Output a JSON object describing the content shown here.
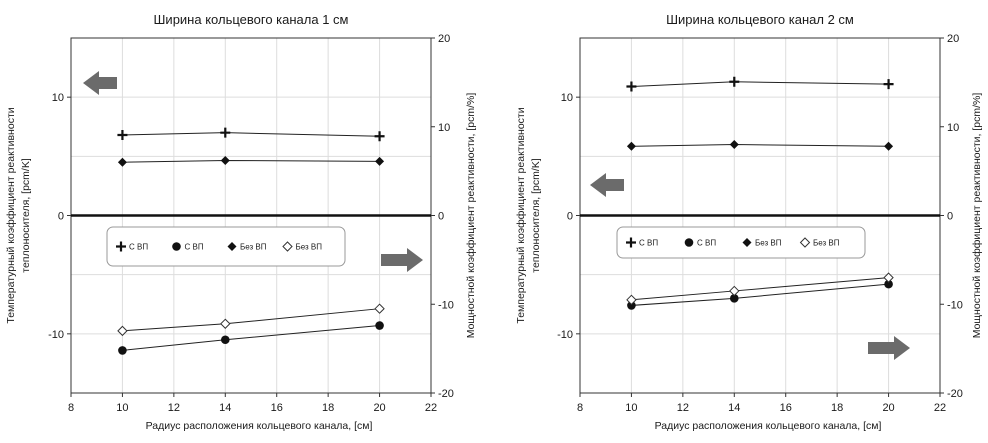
{
  "chart_data": [
    {
      "type": "line",
      "title": "Ширина кольцевого канала 1 см",
      "xlabel": "Радиус расположения кольцевого канала, [см]",
      "ylabel_lines": [
        "Температурный коэффициент реактивности",
        "теплоносителя, [pcm/K]"
      ],
      "y2label": "Мощностной коэффициент реактивности, [pcm/%]",
      "xlim": [
        8,
        22
      ],
      "ylim": [
        -15,
        15
      ],
      "y2lim": [
        -20,
        20
      ],
      "xticks": [
        "8",
        "10",
        "12",
        "14",
        "16",
        "18",
        "20",
        "22"
      ],
      "yticks": [
        "-10",
        "0",
        "10"
      ],
      "y2ticks": [
        "-20",
        "-10",
        "0",
        "10",
        "20"
      ],
      "grid": true,
      "legend_position": "center-left",
      "series": [
        {
          "name": "С ВП",
          "marker": "plus",
          "axis": "left",
          "x": [
            10,
            14,
            20
          ],
          "y": [
            6.8,
            7.0,
            6.7
          ]
        },
        {
          "name": "С ВП",
          "marker": "circle",
          "axis": "left",
          "x": [
            10,
            14,
            20
          ],
          "y": [
            -11.4,
            -10.5,
            -9.3
          ]
        },
        {
          "name": "Без ВП",
          "marker": "diamond-filled",
          "axis": "right",
          "x": [
            10,
            14,
            20
          ],
          "y": [
            6.0,
            6.2,
            6.1
          ]
        },
        {
          "name": "Без ВП",
          "marker": "diamond-open",
          "axis": "right",
          "x": [
            10,
            14,
            20
          ],
          "y": [
            -13.0,
            -12.2,
            -10.5
          ]
        }
      ],
      "arrows": [
        {
          "direction": "left",
          "points_to": "left-axis",
          "near": "top-left"
        },
        {
          "direction": "right",
          "points_to": "right-axis",
          "near": "middle-right"
        }
      ]
    },
    {
      "type": "line",
      "title": "Ширина кольцевого канал 2 см",
      "xlabel": "Радиус расположения кольцевого канала, [см]",
      "ylabel_lines": [
        "Температурный коэффициент реактивности",
        "теплоносителя, [pcm/K]"
      ],
      "y2label": "Мощностной коэффициент реактивности, [pcm/%]",
      "xlim": [
        8,
        22
      ],
      "ylim": [
        -15,
        15
      ],
      "y2lim": [
        -20,
        20
      ],
      "xticks": [
        "8",
        "10",
        "12",
        "14",
        "16",
        "18",
        "20",
        "22"
      ],
      "yticks": [
        "-10",
        "0",
        "10"
      ],
      "y2ticks": [
        "-20",
        "-10",
        "0",
        "10",
        "20"
      ],
      "grid": true,
      "legend_position": "center-left",
      "series": [
        {
          "name": "С ВП",
          "marker": "plus",
          "axis": "left",
          "x": [
            10,
            14,
            20
          ],
          "y": [
            10.9,
            11.3,
            11.1
          ]
        },
        {
          "name": "С ВП",
          "marker": "circle",
          "axis": "left",
          "x": [
            10,
            14,
            20
          ],
          "y": [
            -7.6,
            -7.0,
            -5.8
          ]
        },
        {
          "name": "Без ВП",
          "marker": "diamond-filled",
          "axis": "right",
          "x": [
            10,
            14,
            20
          ],
          "y": [
            7.8,
            8.0,
            7.8
          ]
        },
        {
          "name": "Без ВП",
          "marker": "diamond-open",
          "axis": "right",
          "x": [
            10,
            14,
            20
          ],
          "y": [
            -9.5,
            -8.5,
            -7.0
          ]
        }
      ],
      "arrows": [
        {
          "direction": "left",
          "points_to": "left-axis",
          "near": "middle-left"
        },
        {
          "direction": "right",
          "points_to": "right-axis",
          "near": "bottom-right"
        }
      ]
    }
  ],
  "colors": {
    "line": "#222222",
    "grid": "#dddddd",
    "axis": "#333333",
    "arrow": "#6b6b6b",
    "legend_border": "#999999"
  }
}
